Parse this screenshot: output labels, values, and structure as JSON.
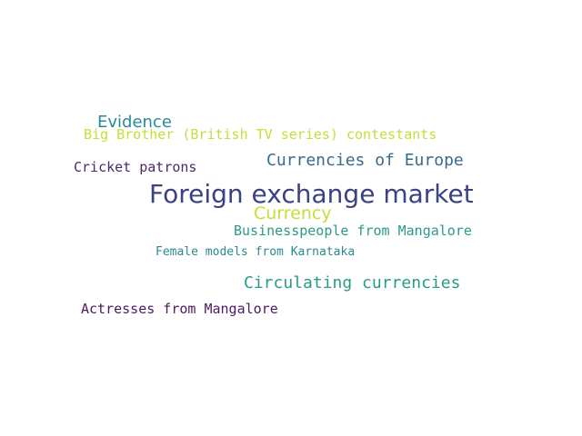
{
  "words": [
    {
      "text": "Evidence",
      "color": "#2a8a9a"
    },
    {
      "text": "Big Brother (British TV series) contestants",
      "color": "#c8dc3a"
    },
    {
      "text": "Cricket patrons",
      "color": "#4a2a6a"
    },
    {
      "text": "Currencies of Europe",
      "color": "#3a6a8a"
    },
    {
      "text": "Foreign exchange market",
      "color": "#3a4282"
    },
    {
      "text": "Currency",
      "color": "#c8dc3a"
    },
    {
      "text": "Businesspeople from Mangalore",
      "color": "#2a9a8a"
    },
    {
      "text": "Female models from Karnataka",
      "color": "#2a8a8e"
    },
    {
      "text": "Circulating currencies",
      "color": "#2a9a8a"
    },
    {
      "text": "Actresses from Mangalore",
      "color": "#4a1a62"
    }
  ]
}
